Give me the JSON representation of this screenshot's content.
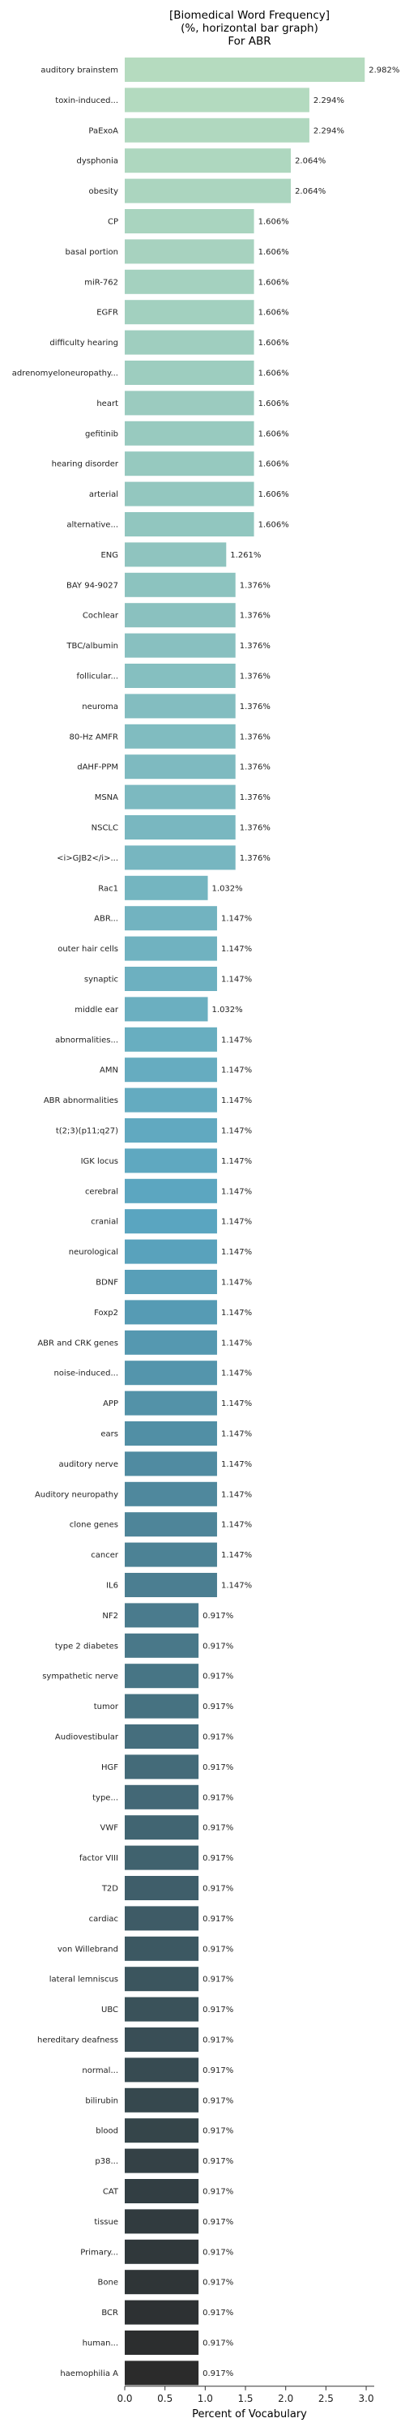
{
  "chart_data": {
    "type": "bar",
    "orientation": "horizontal",
    "title": [
      "[Biomedical Word Frequency]",
      "(%, horizontal bar graph)",
      "For ABR"
    ],
    "xlabel": "Percent of Vocabulary",
    "ylabel": "",
    "xlim": [
      0,
      3.1
    ],
    "xticks": [
      "0.0",
      "0.5",
      "1.0",
      "1.5",
      "2.0",
      "2.5",
      "3.0"
    ],
    "grid": false,
    "colors": {
      "start": "#b5dbbf",
      "mid": "#5aa5c0",
      "end": "#2b2b2b"
    },
    "categories": [
      "auditory brainstem",
      "toxin-induced...",
      "PaExoA",
      "dysphonia",
      "obesity",
      "CP",
      "basal portion",
      "miR-762",
      "EGFR",
      "difficulty hearing",
      "adrenomyeloneuropathy...",
      "heart",
      "gefitinib",
      "hearing disorder",
      "arterial",
      "alternative...",
      "ENG",
      "BAY 94-9027",
      "Cochlear",
      "TBC/albumin",
      "follicular...",
      "neuroma",
      "80-Hz AMFR",
      "dAHF-PPM",
      "MSNA",
      "NSCLC",
      "<i>GJB2</i>...",
      "Rac1",
      "ABR...",
      "outer hair cells",
      "synaptic",
      "middle ear",
      "abnormalities...",
      "AMN",
      "ABR abnormalities",
      "t(2;3)(p11;q27)",
      "IGK locus",
      "cerebral",
      "cranial",
      "neurological",
      "BDNF",
      "Foxp2",
      "ABR and CRK genes",
      "noise-induced...",
      "APP",
      "ears",
      "auditory nerve",
      "Auditory neuropathy",
      "clone genes",
      "cancer",
      "IL6",
      "NF2",
      "type 2 diabetes",
      "sympathetic nerve",
      "tumor",
      "Audiovestibular",
      "HGF",
      "type...",
      "VWF",
      "factor VIII",
      "T2D",
      "cardiac",
      "von Willebrand",
      "lateral lemniscus",
      "UBC",
      "hereditary deafness",
      "normal...",
      "bilirubin",
      "blood",
      "p38...",
      "CAT",
      "tissue",
      "Primary...",
      "Bone",
      "BCR",
      "human...",
      "haemophilia A"
    ],
    "values": [
      2.982,
      2.294,
      2.294,
      2.064,
      2.064,
      1.606,
      1.606,
      1.606,
      1.606,
      1.606,
      1.606,
      1.606,
      1.606,
      1.606,
      1.606,
      1.606,
      1.261,
      1.376,
      1.376,
      1.376,
      1.376,
      1.376,
      1.376,
      1.376,
      1.376,
      1.376,
      1.376,
      1.032,
      1.147,
      1.147,
      1.147,
      1.032,
      1.147,
      1.147,
      1.147,
      1.147,
      1.147,
      1.147,
      1.147,
      1.147,
      1.147,
      1.147,
      1.147,
      1.147,
      1.147,
      1.147,
      1.147,
      1.147,
      1.147,
      1.147,
      1.147,
      0.917,
      0.917,
      0.917,
      0.917,
      0.917,
      0.917,
      0.917,
      0.917,
      0.917,
      0.917,
      0.917,
      0.917,
      0.917,
      0.917,
      0.917,
      0.917,
      0.917,
      0.917,
      0.917,
      0.917,
      0.917,
      0.917,
      0.917,
      0.917,
      0.917,
      0.917
    ],
    "value_labels": [
      "2.982%",
      "2.294%",
      "2.294%",
      "2.064%",
      "2.064%",
      "1.606%",
      "1.606%",
      "1.606%",
      "1.606%",
      "1.606%",
      "1.606%",
      "1.606%",
      "1.606%",
      "1.606%",
      "1.606%",
      "1.606%",
      "1.261%",
      "1.376%",
      "1.376%",
      "1.376%",
      "1.376%",
      "1.376%",
      "1.376%",
      "1.376%",
      "1.376%",
      "1.376%",
      "1.376%",
      "1.032%",
      "1.147%",
      "1.147%",
      "1.147%",
      "1.032%",
      "1.147%",
      "1.147%",
      "1.147%",
      "1.147%",
      "1.147%",
      "1.147%",
      "1.147%",
      "1.147%",
      "1.147%",
      "1.147%",
      "1.147%",
      "1.147%",
      "1.147%",
      "1.147%",
      "1.147%",
      "1.147%",
      "1.147%",
      "1.147%",
      "1.147%",
      "0.917%",
      "0.917%",
      "0.917%",
      "0.917%",
      "0.917%",
      "0.917%",
      "0.917%",
      "0.917%",
      "0.917%",
      "0.917%",
      "0.917%",
      "0.917%",
      "0.917%",
      "0.917%",
      "0.917%",
      "0.917%",
      "0.917%",
      "0.917%",
      "0.917%",
      "0.917%",
      "0.917%",
      "0.917%",
      "0.917%",
      "0.917%",
      "0.917%",
      "0.917%"
    ]
  }
}
